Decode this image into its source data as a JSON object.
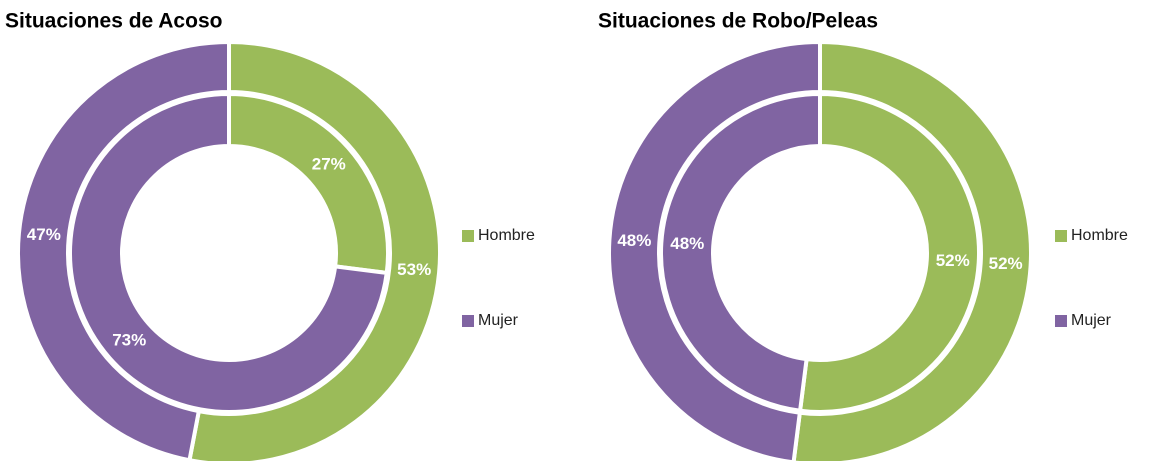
{
  "chart_data": [
    {
      "type": "donut",
      "title": "Situaciones de Acoso",
      "categories": [
        "Hombre",
        "Mujer"
      ],
      "colors": [
        "#9bbb59",
        "#8064a2"
      ],
      "series": [
        {
          "values": [
            27,
            73
          ],
          "value_labels": [
            "27%",
            "73%"
          ]
        },
        {
          "values": [
            53,
            47
          ],
          "value_labels": [
            "53%",
            "47%"
          ]
        }
      ]
    },
    {
      "type": "donut",
      "title": "Situaciones de Robo/Peleas",
      "categories": [
        "Hombre",
        "Mujer"
      ],
      "colors": [
        "#9bbb59",
        "#8064a2"
      ],
      "series": [
        {
          "values": [
            52,
            48
          ],
          "value_labels": [
            "52%",
            "48%"
          ]
        },
        {
          "values": [
            52,
            48
          ],
          "value_labels": [
            "52%",
            "48%"
          ]
        }
      ]
    }
  ]
}
